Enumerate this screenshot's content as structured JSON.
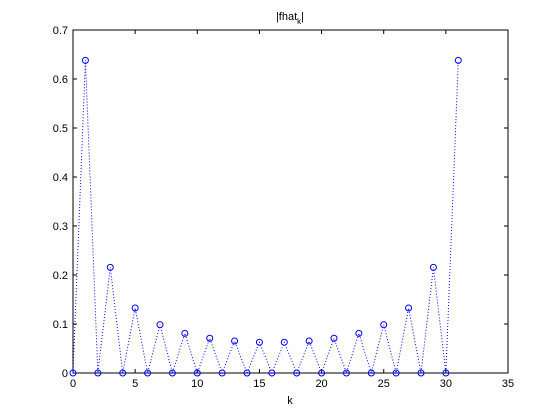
{
  "chart_data": {
    "type": "line",
    "title": {
      "text": "|fhat",
      "subscript": "k",
      "end": "|"
    },
    "x_label": "k",
    "x": [
      0,
      1,
      2,
      3,
      4,
      5,
      6,
      7,
      8,
      9,
      10,
      11,
      12,
      13,
      14,
      15,
      16,
      17,
      18,
      19,
      20,
      21,
      22,
      23,
      24,
      25,
      26,
      27,
      28,
      29,
      30,
      31
    ],
    "values": [
      0,
      0.638,
      0,
      0.2155,
      0,
      0.1327,
      0,
      0.0985,
      0,
      0.0809,
      0,
      0.0709,
      0,
      0.0653,
      0,
      0.0628,
      0,
      0.0628,
      0,
      0.0653,
      0,
      0.0709,
      0,
      0.0809,
      0,
      0.0985,
      0,
      0.1327,
      0,
      0.2155,
      0,
      0.638
    ],
    "color": "#0000ff",
    "line_style": "dotted",
    "marker": "circle",
    "xlim": [
      0,
      35
    ],
    "xticks": [
      0,
      5,
      10,
      15,
      20,
      25,
      30,
      35
    ],
    "ylim": [
      0,
      0.7
    ],
    "yticks": [
      0,
      0.1,
      0.2,
      0.3,
      0.4,
      0.5,
      0.6,
      0.7
    ]
  }
}
